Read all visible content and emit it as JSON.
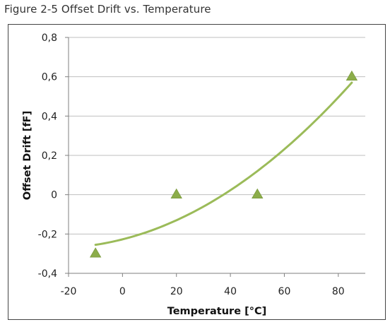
{
  "caption": "Figure 2-5 Offset Drift vs. Temperature",
  "chart_data": {
    "type": "scatter",
    "title": "",
    "xlabel": "Temperature [°C]",
    "ylabel": "Offset Drift [fF]",
    "xlim": [
      -20,
      90
    ],
    "ylim": [
      -0.4,
      0.8
    ],
    "x_ticks": [
      -20,
      0,
      20,
      40,
      60,
      80
    ],
    "y_ticks": [
      -0.4,
      -0.2,
      0,
      0.2,
      0.4,
      0.6,
      0.8
    ],
    "x_tick_labels": [
      "-20",
      "0",
      "20",
      "40",
      "60",
      "80"
    ],
    "y_tick_labels": [
      "-0,4",
      "-0,2",
      "0",
      "0,2",
      "0,4",
      "0,6",
      "0,8"
    ],
    "grid": "horizontal",
    "marker": "triangle",
    "series": [
      {
        "x": [
          -10,
          20,
          50,
          85
        ],
        "y": [
          -0.3,
          0,
          0,
          0.6
        ],
        "color": "#8cad4a"
      }
    ],
    "trendline": {
      "type": "polynomial",
      "x_range": [
        -10,
        85
      ],
      "points": [
        [
          -10,
          -0.255
        ],
        [
          20,
          -0.13
        ],
        [
          50,
          0.12
        ],
        [
          85,
          0.57
        ]
      ],
      "color": "#9bbb59"
    }
  }
}
